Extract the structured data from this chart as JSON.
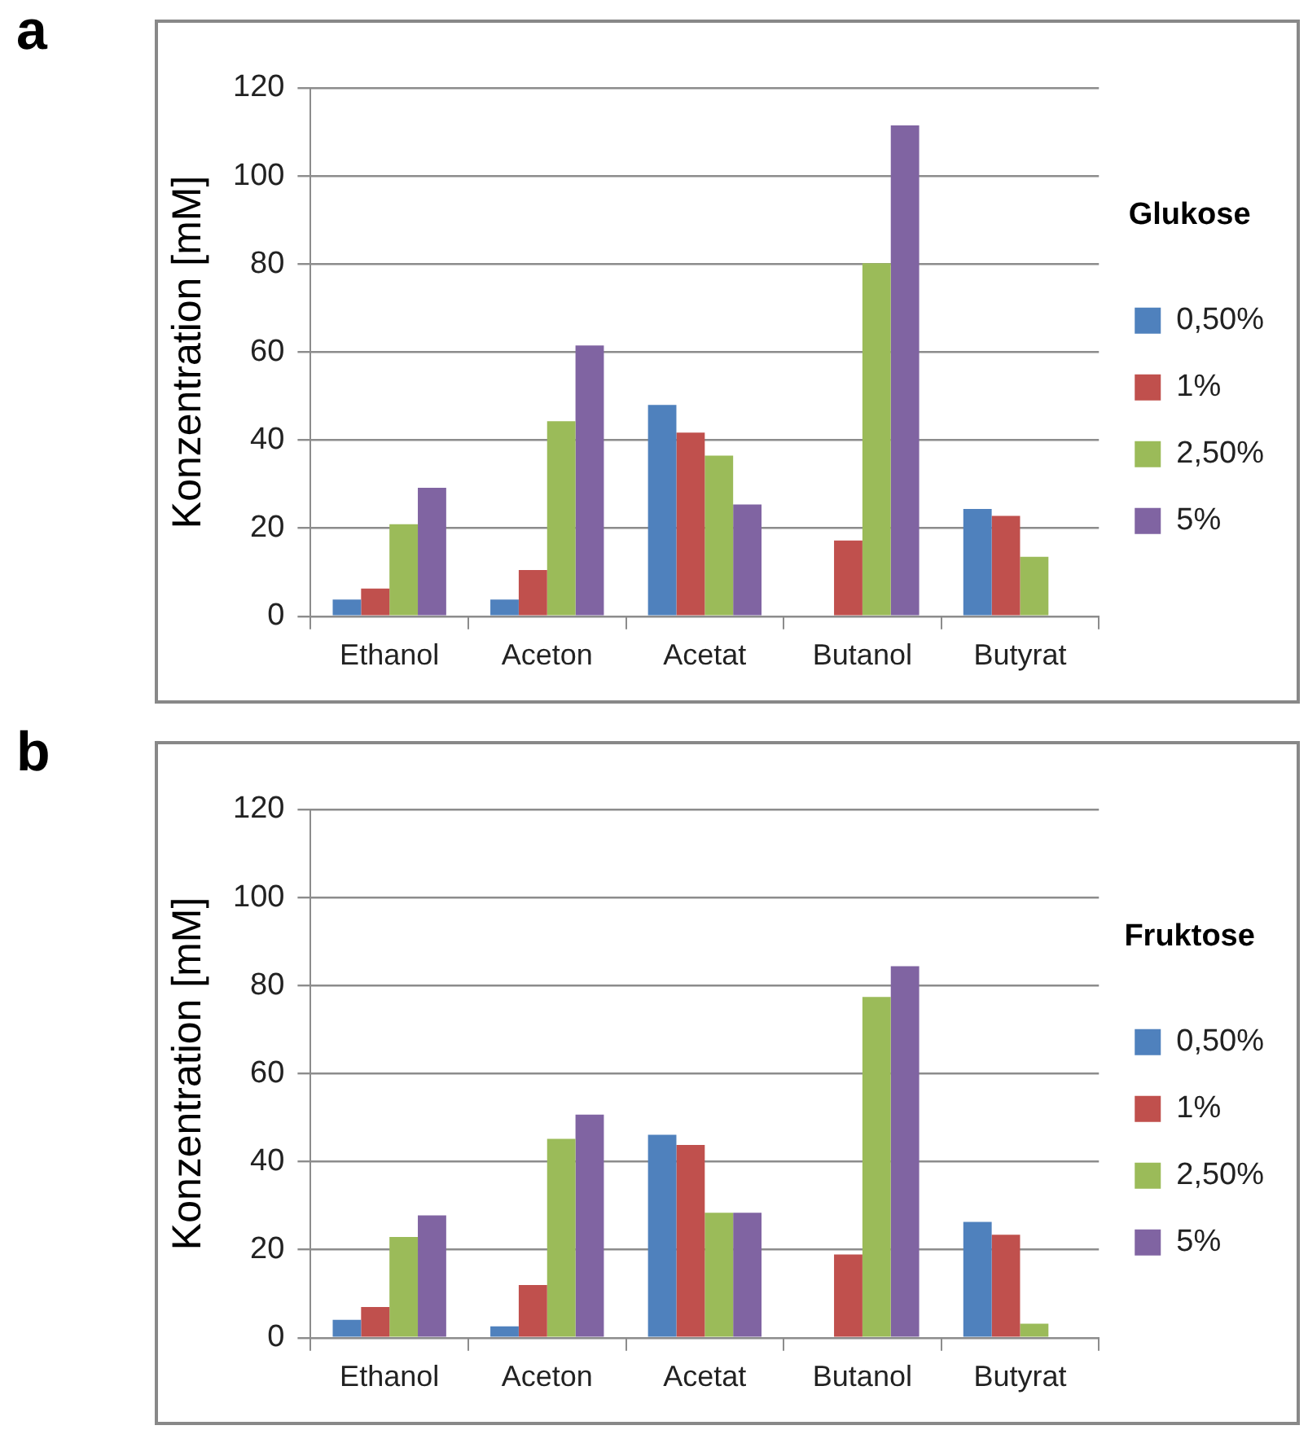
{
  "chart_data": [
    {
      "type": "bar",
      "title": "a",
      "ylabel": "Konzentration [mM]",
      "legend_title": "Glukose",
      "categories": [
        "Ethanol",
        "Aceton",
        "Acetat",
        "Butanol",
        "Butyrat"
      ],
      "series": [
        {
          "name": "0,50%",
          "color": "#4f81bd",
          "values": [
            3.8,
            3.8,
            48,
            null,
            24.4
          ]
        },
        {
          "name": "1%",
          "color": "#c0504d",
          "values": [
            6.3,
            10.5,
            41.7,
            17.2,
            22.8
          ]
        },
        {
          "name": "2,50%",
          "color": "#9bbb59",
          "values": [
            20.9,
            44.3,
            36.5,
            80.2,
            13.5
          ]
        },
        {
          "name": "5%",
          "color": "#8064a2",
          "values": [
            29.2,
            61.5,
            25.4,
            111.5,
            null
          ]
        }
      ],
      "ylim": [
        0,
        120
      ],
      "yticks": [
        0,
        20,
        40,
        60,
        80,
        100,
        120
      ],
      "grid": "y",
      "legend": "right"
    },
    {
      "type": "bar",
      "title": "b",
      "ylabel": "Konzentration [mM]",
      "legend_title": "Fruktose",
      "categories": [
        "Ethanol",
        "Aceton",
        "Acetat",
        "Butanol",
        "Butyrat"
      ],
      "series": [
        {
          "name": "0,50%",
          "color": "#4f81bd",
          "values": [
            4.1,
            2.6,
            46.1,
            null,
            26.3
          ]
        },
        {
          "name": "1%",
          "color": "#c0504d",
          "values": [
            7.0,
            12.0,
            43.8,
            18.9,
            23.4
          ]
        },
        {
          "name": "2,50%",
          "color": "#9bbb59",
          "values": [
            22.9,
            45.2,
            28.4,
            77.4,
            3.2
          ]
        },
        {
          "name": "5%",
          "color": "#8064a2",
          "values": [
            27.8,
            50.7,
            28.4,
            84.4,
            null
          ]
        }
      ],
      "ylim": [
        0,
        120
      ],
      "yticks": [
        0,
        20,
        40,
        60,
        80,
        100,
        120
      ],
      "grid": "y",
      "legend": "right"
    }
  ]
}
